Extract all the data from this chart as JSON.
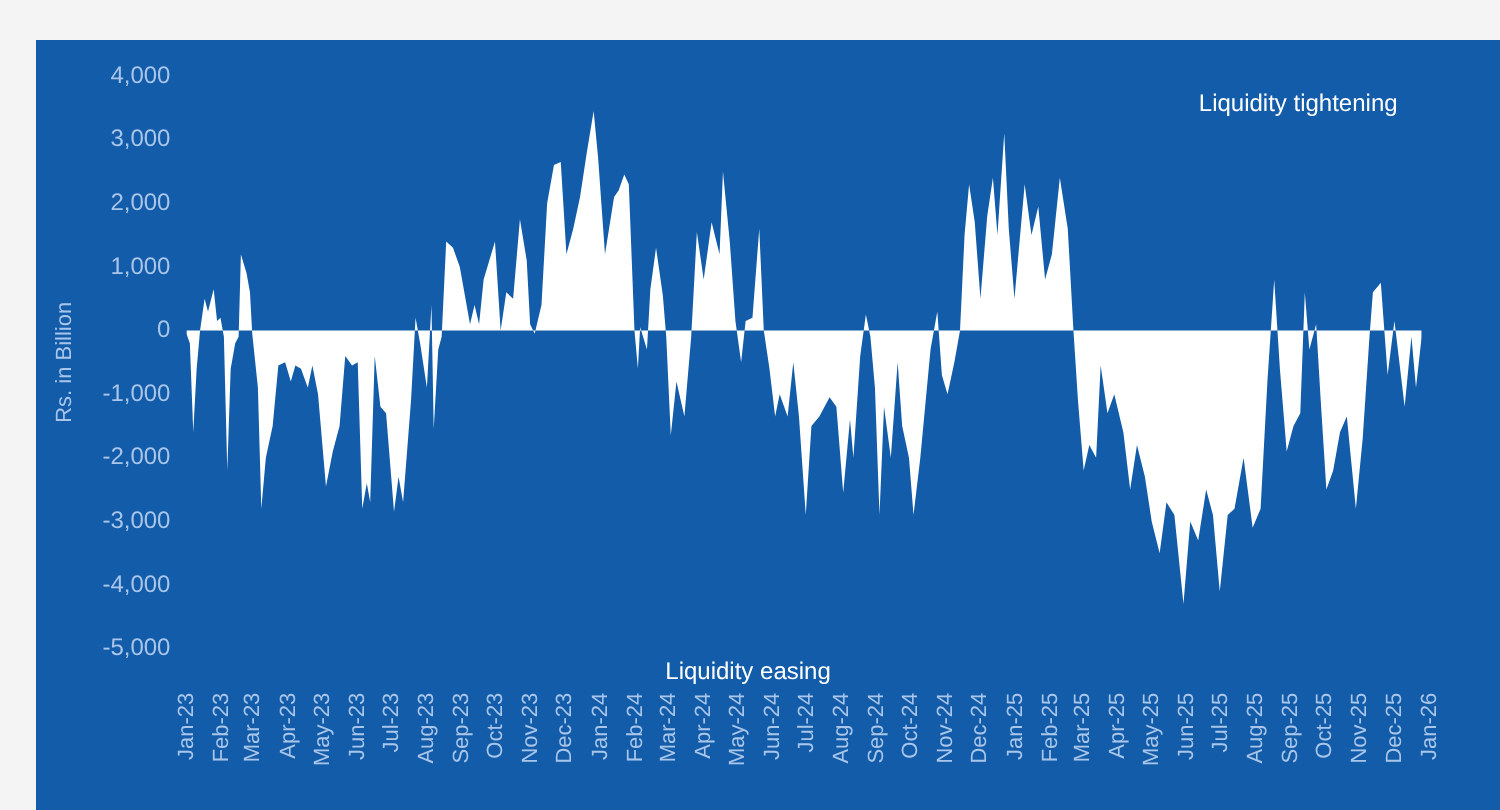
{
  "chart_data": {
    "type": "area",
    "ylabel": "Rs. in Billion",
    "annotations": [
      "Liquidity tightening",
      "Liquidity easing"
    ],
    "ylim": [
      -5000,
      4000
    ],
    "yticks": [
      {
        "value": -5000,
        "label": "-5,000"
      },
      {
        "value": -4000,
        "label": "-4,000"
      },
      {
        "value": -3000,
        "label": "-3,000"
      },
      {
        "value": -2000,
        "label": "-2,000"
      },
      {
        "value": -1000,
        "label": "-1,000"
      },
      0,
      {
        "value": 1000,
        "label": "1,000"
      },
      {
        "value": 2000,
        "label": "2,000"
      },
      {
        "value": 3000,
        "label": "3,000"
      },
      {
        "value": 4000,
        "label": "4,000"
      }
    ],
    "xlim": [
      "2023-01-01",
      "2026-01-01"
    ],
    "xticks": [
      {
        "value": "2023-01-01",
        "label": "Jan-23"
      },
      {
        "value": "2023-02-01",
        "label": "Feb-23"
      },
      {
        "value": "2023-03-01",
        "label": "Mar-23"
      },
      {
        "value": "2023-04-01",
        "label": "Apr-23"
      },
      {
        "value": "2023-05-01",
        "label": "May-23"
      },
      {
        "value": "2023-06-01",
        "label": "Jun-23"
      },
      {
        "value": "2023-07-01",
        "label": "Jul-23"
      },
      {
        "value": "2023-08-01",
        "label": "Aug-23"
      },
      {
        "value": "2023-09-01",
        "label": "Sep-23"
      },
      {
        "value": "2023-10-01",
        "label": "Oct-23"
      },
      {
        "value": "2023-11-01",
        "label": "Nov-23"
      },
      {
        "value": "2023-12-01",
        "label": "Dec-23"
      },
      {
        "value": "2024-01-01",
        "label": "Jan-24"
      },
      {
        "value": "2024-02-01",
        "label": "Feb-24"
      },
      {
        "value": "2024-03-01",
        "label": "Mar-24"
      },
      {
        "value": "2024-04-01",
        "label": "Apr-24"
      },
      {
        "value": "2024-05-01",
        "label": "May-24"
      },
      {
        "value": "2024-06-01",
        "label": "Jun-24"
      },
      {
        "value": "2024-07-01",
        "label": "Jul-24"
      },
      {
        "value": "2024-08-01",
        "label": "Aug-24"
      },
      {
        "value": "2024-09-01",
        "label": "Sep-24"
      },
      {
        "value": "2024-10-01",
        "label": "Oct-24"
      },
      {
        "value": "2024-11-01",
        "label": "Nov-24"
      },
      {
        "value": "2024-12-01",
        "label": "Dec-24"
      },
      {
        "value": "2025-01-01",
        "label": "Jan-25"
      },
      {
        "value": "2025-02-01",
        "label": "Feb-25"
      },
      {
        "value": "2025-03-01",
        "label": "Mar-25"
      },
      {
        "value": "2025-04-01",
        "label": "Apr-25"
      },
      {
        "value": "2025-05-01",
        "label": "May-25"
      },
      {
        "value": "2025-06-01",
        "label": "Jun-25"
      },
      {
        "value": "2025-07-01",
        "label": "Jul-25"
      },
      {
        "value": "2025-08-01",
        "label": "Aug-25"
      },
      {
        "value": "2025-09-01",
        "label": "Sep-25"
      },
      {
        "value": "2025-10-01",
        "label": "Oct-25"
      },
      {
        "value": "2025-11-01",
        "label": "Nov-25"
      },
      {
        "value": "2025-12-01",
        "label": "Dec-25"
      },
      {
        "value": "2026-01-01",
        "label": "Jan-26"
      }
    ],
    "grid": false,
    "legend": false,
    "series": [
      {
        "color": "#ffffff",
        "x": [
          "2023-01-01",
          "2023-01-04",
          "2023-01-07",
          "2023-01-10",
          "2023-01-13",
          "2023-01-17",
          "2023-01-20",
          "2023-01-25",
          "2023-01-28",
          "2023-01-31",
          "2023-02-03",
          "2023-02-06",
          "2023-02-09",
          "2023-02-13",
          "2023-02-16",
          "2023-02-18",
          "2023-02-23",
          "2023-02-26",
          "2023-02-28",
          "2023-03-05",
          "2023-03-08",
          "2023-03-12",
          "2023-03-18",
          "2023-03-23",
          "2023-03-29",
          "2023-04-03",
          "2023-04-07",
          "2023-04-12",
          "2023-04-18",
          "2023-04-22",
          "2023-04-27",
          "2023-05-04",
          "2023-05-10",
          "2023-05-16",
          "2023-05-21",
          "2023-05-27",
          "2023-06-01",
          "2023-06-05",
          "2023-06-09",
          "2023-06-12",
          "2023-06-16",
          "2023-06-21",
          "2023-06-26",
          "2023-07-03",
          "2023-07-07",
          "2023-07-11",
          "2023-07-18",
          "2023-07-22",
          "2023-07-26",
          "2023-08-01",
          "2023-08-05",
          "2023-08-07",
          "2023-08-11",
          "2023-08-14",
          "2023-08-18",
          "2023-08-24",
          "2023-08-30",
          "2023-09-04",
          "2023-09-08",
          "2023-09-12",
          "2023-09-16",
          "2023-09-20",
          "2023-09-25",
          "2023-09-30",
          "2023-10-05",
          "2023-10-10",
          "2023-10-16",
          "2023-10-22",
          "2023-10-28",
          "2023-10-31",
          "2023-11-04",
          "2023-11-10",
          "2023-11-15",
          "2023-11-21",
          "2023-11-27",
          "2023-12-02",
          "2023-12-08",
          "2023-12-14",
          "2023-12-20",
          "2023-12-26",
          "2023-12-30",
          "2024-01-05",
          "2024-01-13",
          "2024-01-17",
          "2024-01-22",
          "2024-01-26",
          "2024-01-31",
          "2024-02-03",
          "2024-02-05",
          "2024-02-11",
          "2024-02-14",
          "2024-02-19",
          "2024-02-25",
          "2024-02-28",
          "2024-03-03",
          "2024-03-08",
          "2024-03-15",
          "2024-03-21",
          "2024-03-26",
          "2024-04-01",
          "2024-04-08",
          "2024-04-15",
          "2024-04-18",
          "2024-04-24",
          "2024-04-29",
          "2024-05-04",
          "2024-05-08",
          "2024-05-14",
          "2024-05-20",
          "2024-05-24",
          "2024-05-29",
          "2024-06-03",
          "2024-06-07",
          "2024-06-14",
          "2024-06-19",
          "2024-06-24",
          "2024-06-30",
          "2024-07-05",
          "2024-07-12",
          "2024-07-21",
          "2024-07-27",
          "2024-08-02",
          "2024-08-08",
          "2024-08-11",
          "2024-08-17",
          "2024-08-22",
          "2024-08-26",
          "2024-08-30",
          "2024-09-03",
          "2024-09-07",
          "2024-09-13",
          "2024-09-19",
          "2024-09-23",
          "2024-09-29",
          "2024-10-03",
          "2024-10-09",
          "2024-10-18",
          "2024-10-24",
          "2024-10-28",
          "2024-11-02",
          "2024-11-08",
          "2024-11-13",
          "2024-11-17",
          "2024-11-21",
          "2024-11-26",
          "2024-12-01",
          "2024-12-07",
          "2024-12-12",
          "2024-12-16",
          "2024-12-22",
          "2024-12-26",
          "2024-12-31",
          "2025-01-09",
          "2025-01-15",
          "2025-01-21",
          "2025-01-27",
          "2025-02-02",
          "2025-02-09",
          "2025-02-16",
          "2025-02-21",
          "2025-02-25",
          "2025-03-02",
          "2025-03-07",
          "2025-03-13",
          "2025-03-17",
          "2025-03-23",
          "2025-03-29",
          "2025-04-06",
          "2025-04-12",
          "2025-04-18",
          "2025-04-25",
          "2025-05-01",
          "2025-05-08",
          "2025-05-14",
          "2025-05-21",
          "2025-05-29",
          "2025-06-04",
          "2025-06-11",
          "2025-06-18",
          "2025-06-24",
          "2025-06-30",
          "2025-07-07",
          "2025-07-13",
          "2025-07-21",
          "2025-07-29",
          "2025-08-05",
          "2025-08-11",
          "2025-08-17",
          "2025-08-22",
          "2025-08-28",
          "2025-09-03",
          "2025-09-09",
          "2025-09-13",
          "2025-09-17",
          "2025-09-23",
          "2025-09-27",
          "2025-10-02",
          "2025-10-08",
          "2025-10-14",
          "2025-10-20",
          "2025-10-28",
          "2025-11-03",
          "2025-11-09",
          "2025-11-12",
          "2025-11-19",
          "2025-11-25",
          "2025-12-01",
          "2025-12-10",
          "2025-12-16",
          "2025-12-20",
          "2025-12-25"
        ],
        "values": [
          -50,
          -200,
          -1600,
          -600,
          0,
          500,
          300,
          650,
          150,
          200,
          -100,
          -2200,
          -600,
          -200,
          -100,
          1200,
          900,
          600,
          -50,
          -900,
          -2800,
          -2000,
          -1500,
          -550,
          -500,
          -800,
          -550,
          -600,
          -900,
          -550,
          -1000,
          -2450,
          -1900,
          -1500,
          -400,
          -550,
          -500,
          -2800,
          -2400,
          -2700,
          -400,
          -1200,
          -1300,
          -2850,
          -2300,
          -2700,
          -1100,
          200,
          -200,
          -900,
          400,
          -1550,
          -300,
          -100,
          1400,
          1300,
          1000,
          500,
          100,
          400,
          100,
          800,
          1100,
          1400,
          0,
          600,
          500,
          1750,
          1100,
          100,
          -50,
          400,
          2000,
          2600,
          2650,
          1200,
          1600,
          2100,
          2800,
          3450,
          2700,
          1200,
          2100,
          2200,
          2450,
          2300,
          0,
          -600,
          50,
          -300,
          650,
          1300,
          550,
          -100,
          -1650,
          -800,
          -1350,
          -100,
          1550,
          800,
          1700,
          1200,
          2500,
          1400,
          150,
          -500,
          150,
          200,
          1600,
          0,
          -600,
          -1350,
          -1000,
          -1350,
          -500,
          -1350,
          -2900,
          -1500,
          -1350,
          -1050,
          -1200,
          -2550,
          -1400,
          -2000,
          -400,
          250,
          -100,
          -900,
          -2900,
          -1200,
          -2000,
          -500,
          -1500,
          -2000,
          -2900,
          -2000,
          -300,
          300,
          -700,
          -1000,
          -500,
          0,
          1500,
          2300,
          1700,
          500,
          1800,
          2400,
          1500,
          3100,
          1600,
          500,
          2300,
          1500,
          1950,
          800,
          1200,
          2400,
          1600,
          0,
          -1100,
          -2200,
          -1800,
          -2000,
          -550,
          -1300,
          -1000,
          -1600,
          -2500,
          -1800,
          -2300,
          -3000,
          -3500,
          -2700,
          -2900,
          -4300,
          -3000,
          -3300,
          -2500,
          -2900,
          -4100,
          -2900,
          -2800,
          -2000,
          -3100,
          -2800,
          -800,
          800,
          -600,
          -1900,
          -1500,
          -1300,
          600,
          -300,
          100,
          -1100,
          -2500,
          -2200,
          -1600,
          -1350,
          -2800,
          -1700,
          -100,
          600,
          750,
          -700,
          150,
          -1200,
          -100,
          -900,
          -100
        ]
      }
    ]
  }
}
